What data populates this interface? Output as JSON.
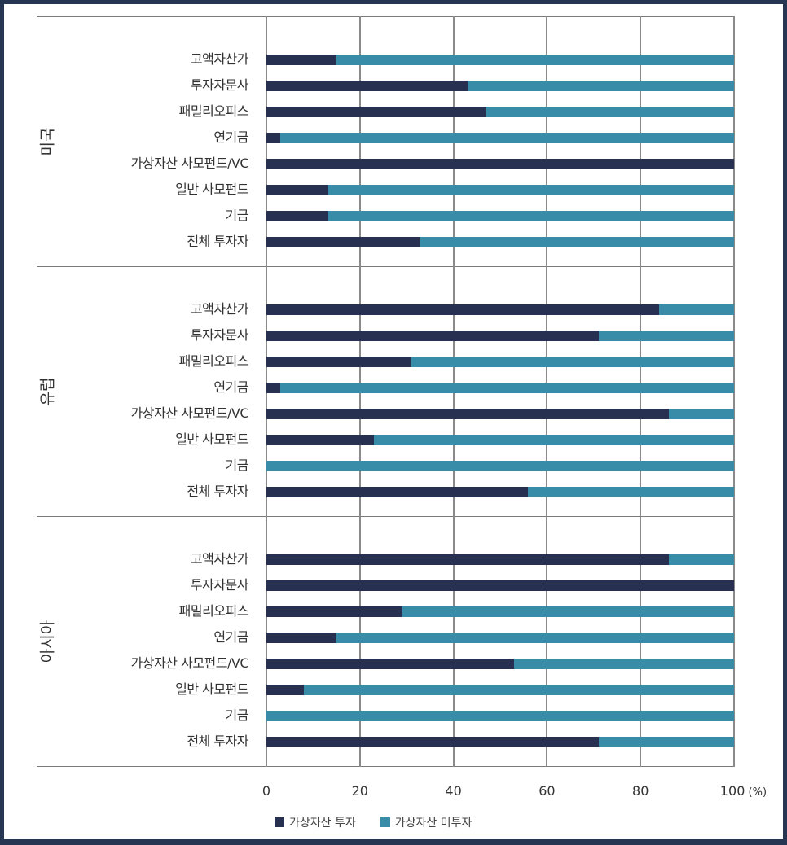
{
  "chart_data": {
    "type": "bar",
    "orientation": "horizontal",
    "stacked": true,
    "title": "",
    "xlabel": "",
    "unit": "(%)",
    "xlim": [
      0,
      100
    ],
    "x_ticks": [
      "0",
      "20",
      "40",
      "60",
      "80",
      "100"
    ],
    "grid": true,
    "legend_position": "bottom",
    "categories": [
      "고액자산가",
      "투자자문사",
      "패밀리오피스",
      "연기금",
      "가상자산 사모펀드/VC",
      "일반 사모펀드",
      "기금",
      "전체 투자자"
    ],
    "groups": [
      {
        "name": "미국",
        "series": [
          {
            "name": "가상자산 투자",
            "values": [
              15,
              43,
              47,
              3,
              100,
              13,
              13,
              33
            ]
          },
          {
            "name": "가상자산 미투자",
            "values": [
              85,
              57,
              53,
              97,
              0,
              87,
              87,
              67
            ]
          }
        ]
      },
      {
        "name": "유럽",
        "series": [
          {
            "name": "가상자산 투자",
            "values": [
              84,
              71,
              31,
              3,
              86,
              23,
              0,
              56
            ]
          },
          {
            "name": "가상자산 미투자",
            "values": [
              16,
              29,
              69,
              97,
              14,
              77,
              100,
              44
            ]
          }
        ]
      },
      {
        "name": "아시아",
        "series": [
          {
            "name": "가상자산 투자",
            "values": [
              86,
              100,
              29,
              15,
              53,
              8,
              0,
              71
            ]
          },
          {
            "name": "가상자산 미투자",
            "values": [
              14,
              0,
              71,
              85,
              47,
              92,
              100,
              29
            ]
          }
        ]
      }
    ],
    "legend": [
      {
        "name": "가상자산 투자",
        "color": "#273050"
      },
      {
        "name": "가상자산 미투자",
        "color": "#388ca8"
      }
    ]
  },
  "colors": {
    "invest": "#273050",
    "noinvest": "#388ca8",
    "border": "#253552"
  }
}
